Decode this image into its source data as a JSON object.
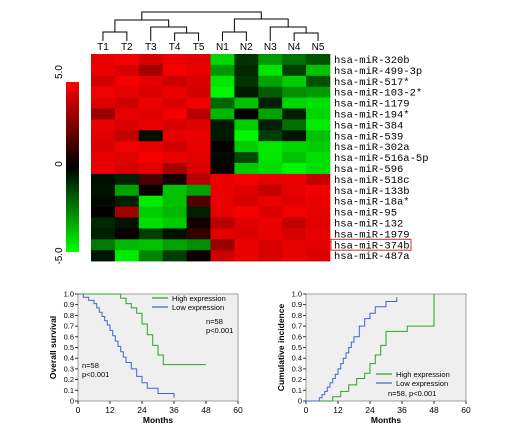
{
  "chart_data": [
    {
      "type": "heatmap",
      "columns": [
        "T1",
        "T2",
        "T3",
        "T4",
        "T5",
        "N1",
        "N2",
        "N3",
        "N4",
        "N5"
      ],
      "rows": [
        "hsa-miR-320b",
        "hsa-miR-499-3p",
        "hsa-miR-517*",
        "hsa-miR-103-2*",
        "hsa-miR-1179",
        "hsa-miR-194*",
        "hsa-miR-384",
        "hsa-miR-539",
        "hsa-miR-302a",
        "hsa-miR-516a-5p",
        "hsa-miR-596",
        "hsa-miR-518c",
        "hsa-miR-133b",
        "hsa-miR-18a*",
        "hsa-miR-95",
        "hsa-miR-132",
        "hsa-miR-1979",
        "hsa-miR-374b",
        "hsa-miR-487a"
      ],
      "highlighted_row": "hsa-miR-374b",
      "values": [
        [
          4.5,
          4.8,
          4.2,
          4.6,
          4.4,
          -4.2,
          -1.0,
          -3.0,
          -2.2,
          -1.6
        ],
        [
          4.6,
          4.2,
          3.2,
          4.8,
          4.5,
          -3.0,
          -0.8,
          -4.5,
          -1.2,
          -3.8
        ],
        [
          4.2,
          4.8,
          4.5,
          4.0,
          4.3,
          -4.5,
          -1.0,
          -3.2,
          -4.0,
          -1.6
        ],
        [
          4.7,
          4.5,
          4.3,
          4.6,
          4.2,
          -4.8,
          -0.5,
          -1.8,
          -2.8,
          -3.0
        ],
        [
          4.4,
          4.1,
          4.6,
          4.3,
          4.7,
          -2.0,
          -3.8,
          -0.6,
          -4.2,
          -4.4
        ],
        [
          3.0,
          4.5,
          4.4,
          4.8,
          3.6,
          -3.6,
          0.1,
          -3.2,
          -0.6,
          -4.2
        ],
        [
          4.6,
          4.3,
          4.5,
          4.2,
          4.4,
          -0.5,
          -4.0,
          -0.6,
          -2.2,
          -4.6
        ],
        [
          4.4,
          3.8,
          -0.3,
          4.5,
          4.6,
          -0.5,
          -4.8,
          -1.2,
          -0.4,
          -3.8
        ],
        [
          4.3,
          4.7,
          4.5,
          4.1,
          4.5,
          0.1,
          -4.0,
          -4.6,
          -4.2,
          -4.0
        ],
        [
          4.5,
          4.4,
          4.8,
          4.6,
          4.4,
          -0.2,
          -1.4,
          -4.5,
          -3.8,
          -4.4
        ],
        [
          4.6,
          4.2,
          4.4,
          3.2,
          4.3,
          0.2,
          -4.0,
          -4.3,
          -4.8,
          -4.4
        ],
        [
          -0.3,
          -0.6,
          1.5,
          0.4,
          3.6,
          4.6,
          4.8,
          4.5,
          4.6,
          3.8
        ],
        [
          -0.4,
          -3.2,
          0.2,
          -3.8,
          -3.2,
          4.6,
          4.4,
          3.8,
          4.5,
          4.7
        ],
        [
          -0.2,
          -0.6,
          -4.6,
          -3.8,
          1.5,
          4.5,
          4.2,
          4.6,
          4.4,
          4.6
        ],
        [
          0.1,
          3.2,
          -4.0,
          -3.6,
          -0.6,
          4.5,
          4.8,
          4.3,
          4.7,
          4.5
        ],
        [
          -0.8,
          -0.4,
          -4.4,
          -4.0,
          0.4,
          3.6,
          4.4,
          4.6,
          3.8,
          4.4
        ],
        [
          -0.6,
          0.2,
          -1.2,
          -0.3,
          1.0,
          4.4,
          4.3,
          4.6,
          4.2,
          4.5
        ],
        [
          -2.4,
          -3.6,
          -3.8,
          -3.2,
          -2.8,
          3.0,
          4.6,
          4.3,
          4.5,
          4.4
        ],
        [
          -0.4,
          -4.6,
          -2.6,
          -1.2,
          0.2,
          4.0,
          4.6,
          4.2,
          4.5,
          4.3
        ]
      ],
      "color_scale": {
        "ticks": [
          "5.0",
          "0",
          "-5.0"
        ],
        "range": [
          -5,
          5
        ],
        "colors": {
          "high": "#ff0000",
          "mid": "#000000",
          "low": "#00ff00"
        }
      }
    },
    {
      "type": "line",
      "subtype": "kaplan-meier",
      "xlabel": "Months",
      "ylabel": "Overall survival",
      "xlim": [
        0,
        60
      ],
      "ylim": [
        0,
        1.0
      ],
      "xticks": [
        "0",
        "12",
        "24",
        "36",
        "48",
        "60"
      ],
      "yticks": [
        "0",
        "0.1",
        "0.2",
        "0.3",
        "0.4",
        "0.5",
        "0.6",
        "0.7",
        "0.8",
        "0.9",
        "1.0"
      ],
      "series": [
        {
          "name": "High expression",
          "color": "#2aa52a",
          "x": [
            0,
            16,
            18,
            20,
            22,
            24,
            26,
            28,
            30,
            32,
            36,
            48
          ],
          "y": [
            1.0,
            0.96,
            0.91,
            0.87,
            0.82,
            0.72,
            0.62,
            0.52,
            0.43,
            0.34,
            0.34,
            0.34
          ]
        },
        {
          "name": "Low expression",
          "color": "#4466cc",
          "x": [
            0,
            2,
            4,
            6,
            7,
            8,
            9,
            10,
            11,
            12,
            13,
            14,
            15,
            16,
            17,
            18,
            20,
            22,
            24,
            26,
            30,
            36
          ],
          "y": [
            1.0,
            0.97,
            0.94,
            0.91,
            0.87,
            0.83,
            0.79,
            0.75,
            0.71,
            0.66,
            0.61,
            0.56,
            0.51,
            0.46,
            0.41,
            0.36,
            0.3,
            0.23,
            0.17,
            0.12,
            0.07,
            0.03
          ]
        }
      ],
      "annotations": [
        {
          "lines": [
            "n=58",
            "p<0.001"
          ]
        },
        {
          "lines": [
            "n=58",
            "p<0.001"
          ]
        }
      ]
    },
    {
      "type": "line",
      "subtype": "cumulative-incidence",
      "xlabel": "Months",
      "ylabel": "Cumulative incidence",
      "xlim": [
        0,
        60
      ],
      "ylim": [
        0,
        1.0
      ],
      "xticks": [
        "0",
        "12",
        "24",
        "36",
        "48",
        "60"
      ],
      "yticks": [
        "0",
        "0.1",
        "0.2",
        "0.3",
        "0.4",
        "0.5",
        "0.6",
        "0.7",
        "0.8",
        "0.9",
        "1.0"
      ],
      "series": [
        {
          "name": "High expression",
          "color": "#2aa52a",
          "x": [
            0,
            10,
            13,
            16,
            19,
            22,
            24,
            26,
            28,
            30,
            38,
            48,
            48
          ],
          "y": [
            0,
            0.04,
            0.09,
            0.15,
            0.21,
            0.26,
            0.35,
            0.43,
            0.52,
            0.65,
            0.7,
            0.7,
            1.0
          ]
        },
        {
          "name": "Low expression",
          "color": "#4466cc",
          "x": [
            0,
            5,
            6,
            7,
            8,
            9,
            10,
            11,
            12,
            13,
            14,
            15,
            16,
            17,
            18,
            20,
            22,
            24,
            26,
            30,
            34
          ],
          "y": [
            0,
            0.03,
            0.06,
            0.09,
            0.13,
            0.17,
            0.21,
            0.25,
            0.3,
            0.35,
            0.4,
            0.45,
            0.5,
            0.55,
            0.6,
            0.7,
            0.77,
            0.82,
            0.88,
            0.93,
            0.97
          ]
        }
      ],
      "annotations": [
        {
          "lines": [
            "n=58, p<0.001"
          ]
        }
      ]
    }
  ]
}
